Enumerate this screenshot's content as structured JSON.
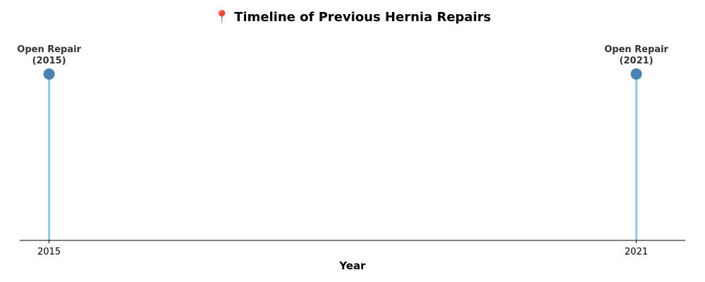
{
  "chart_data": {
    "type": "timeline",
    "title": "📍 Timeline of Previous Hernia Repairs",
    "xlabel": "Year",
    "xlim": [
      2014.7,
      2021.5
    ],
    "grid": false,
    "legend": "none",
    "events": [
      {
        "year": 2015,
        "label_line1": "Open Repair",
        "label_line2": "(2015)"
      },
      {
        "year": 2021,
        "label_line1": "Open Repair",
        "label_line2": "(2021)"
      }
    ],
    "x_ticks": [
      "2015",
      "2021"
    ],
    "colors": {
      "stem": "#87ceeb",
      "marker": "#4682b4",
      "axis": "#000000",
      "label": "#333333"
    }
  }
}
